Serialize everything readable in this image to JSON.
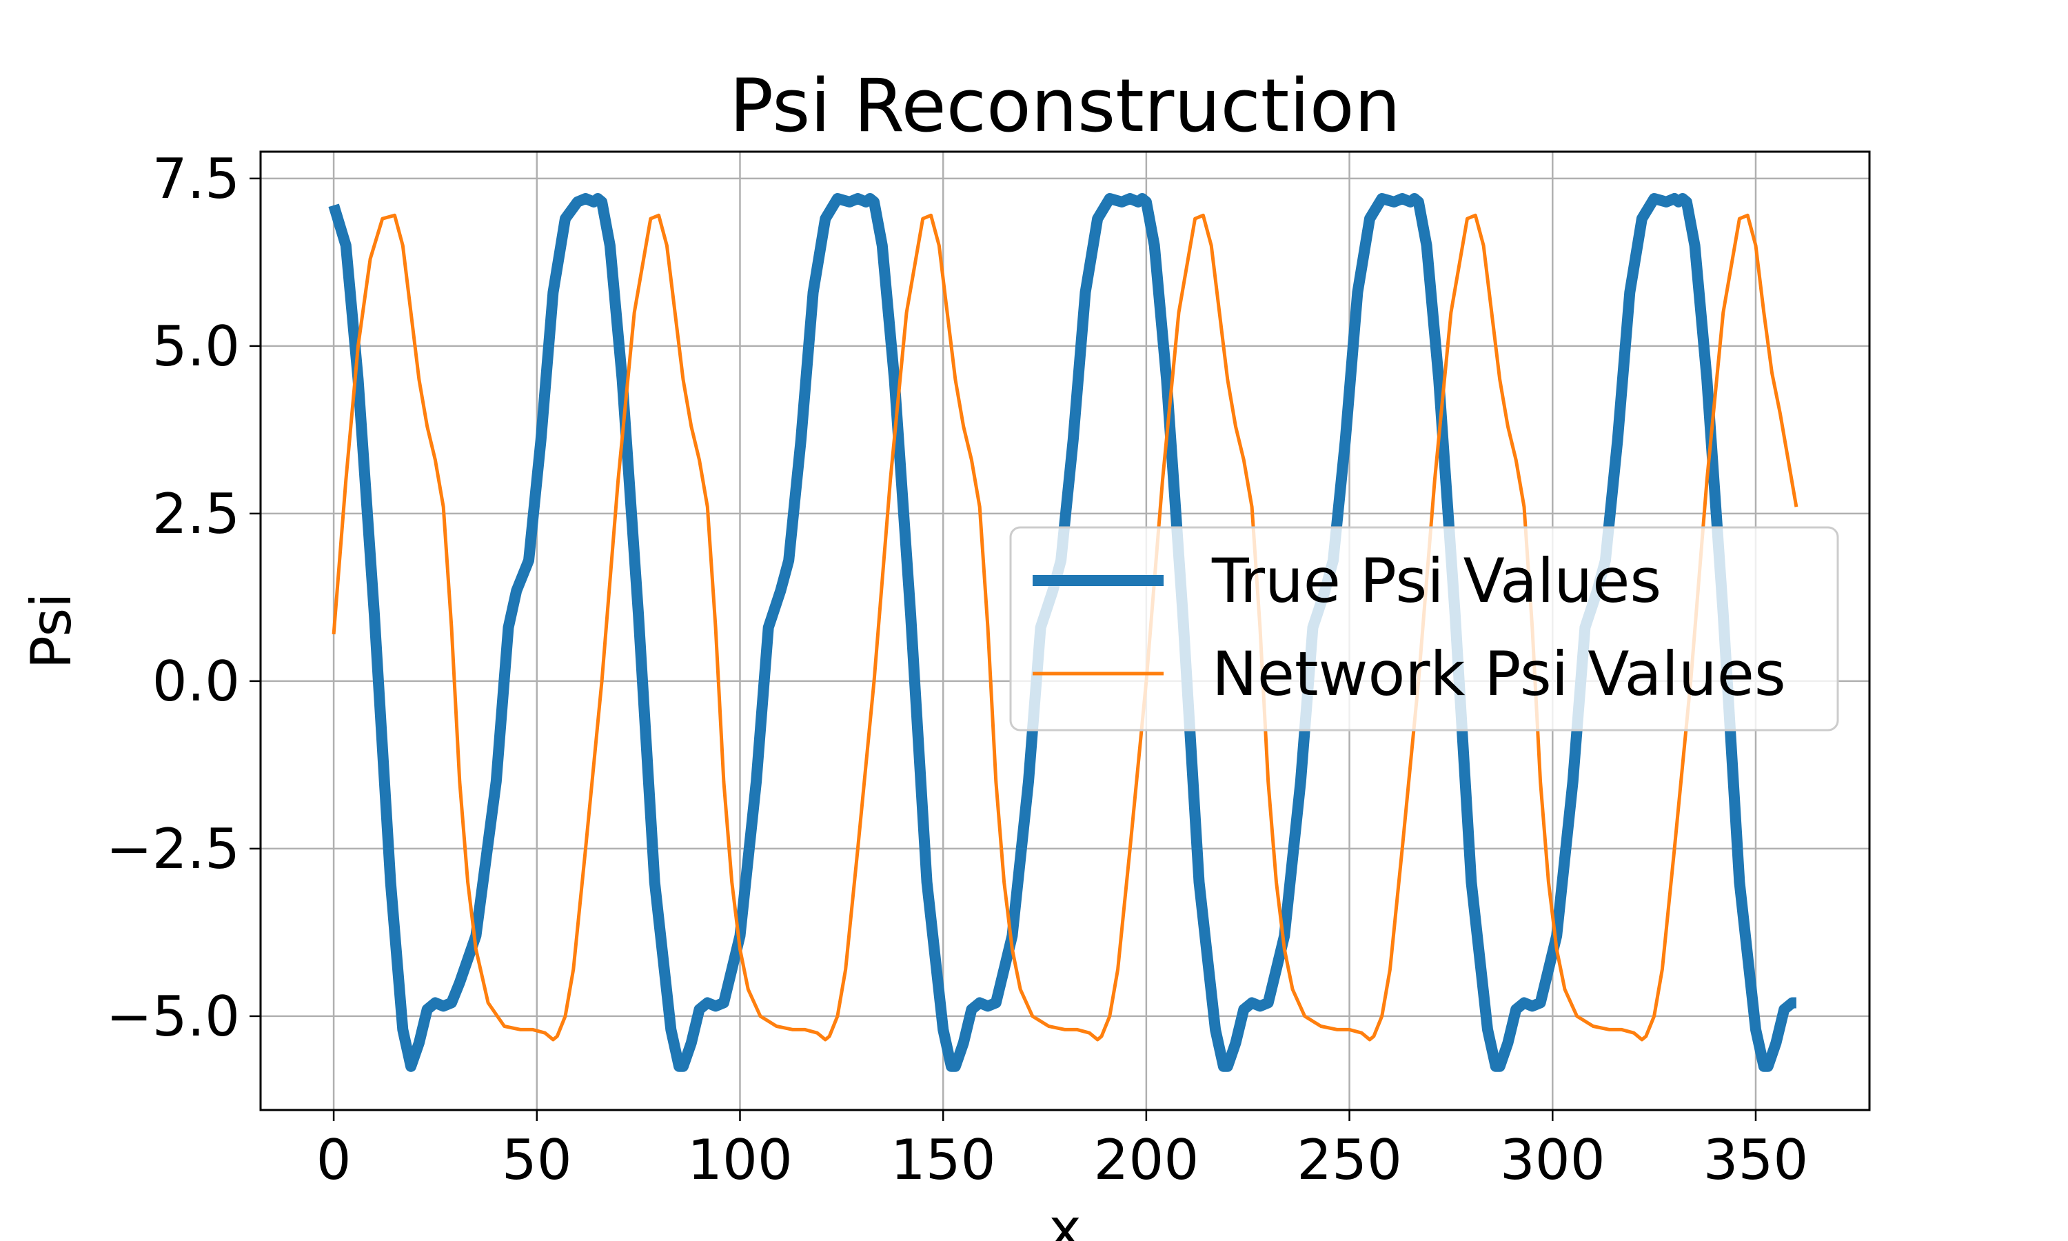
{
  "chart_data": {
    "type": "line",
    "title": "Psi Reconstruction",
    "xlabel": "x",
    "ylabel": "Psi",
    "xlim": [
      -18,
      378
    ],
    "ylim": [
      -6.4,
      7.9
    ],
    "xticks": [
      0,
      50,
      100,
      150,
      200,
      250,
      300,
      350
    ],
    "xtick_labels": [
      "0",
      "50",
      "100",
      "150",
      "200",
      "250",
      "300",
      "350"
    ],
    "yticks": [
      7.5,
      5.0,
      2.5,
      0.0,
      -2.5,
      -5.0
    ],
    "ytick_labels": [
      "7.5",
      "5.0",
      "2.5",
      "0.0",
      "−2.5",
      "−5.0"
    ],
    "grid": true,
    "legend_position": "center-right",
    "series": [
      {
        "name": "True Psi Values",
        "color": "#1f77b4",
        "linewidth": "thick",
        "x": [
          0,
          3,
          6,
          10,
          14,
          17,
          19,
          21,
          23,
          25,
          27,
          29,
          31,
          35,
          40,
          43,
          45,
          48,
          51,
          54,
          57,
          60,
          62,
          64,
          65,
          66,
          68,
          71,
          75,
          79,
          83,
          85,
          86,
          88,
          90,
          92,
          94,
          96,
          100,
          104,
          107,
          110,
          112,
          115,
          118,
          121,
          124,
          127,
          129,
          131,
          132,
          133,
          135,
          138,
          142,
          146,
          150,
          152,
          153,
          155,
          157,
          159,
          161,
          163,
          167,
          171,
          174,
          177,
          179,
          182,
          185,
          188,
          191,
          194,
          196,
          198,
          199,
          200,
          202,
          205,
          209,
          213,
          217,
          219,
          220,
          222,
          224,
          226,
          228,
          230,
          234,
          238,
          241,
          244,
          246,
          249,
          252,
          255,
          258,
          261,
          263,
          265,
          266,
          267,
          269,
          272,
          276,
          280,
          284,
          286,
          287,
          289,
          291,
          293,
          295,
          297,
          301,
          305,
          308,
          311,
          313,
          316,
          319,
          322,
          325,
          328,
          330,
          331,
          332,
          333,
          335,
          338,
          342,
          346,
          350,
          352,
          353,
          355,
          357,
          359,
          360
        ],
        "y": [
          7.1,
          6.5,
          4.5,
          1.0,
          -3.0,
          -5.2,
          -5.75,
          -5.4,
          -4.9,
          -4.8,
          -4.85,
          -4.8,
          -4.5,
          -3.8,
          -1.5,
          0.8,
          1.35,
          1.8,
          3.6,
          5.8,
          6.9,
          7.15,
          7.2,
          7.15,
          7.2,
          7.15,
          6.5,
          4.5,
          1.0,
          -3.0,
          -5.2,
          -5.75,
          -5.75,
          -5.4,
          -4.9,
          -4.8,
          -4.85,
          -4.8,
          -3.8,
          -1.5,
          0.8,
          1.35,
          1.8,
          3.6,
          5.8,
          6.9,
          7.2,
          7.15,
          7.2,
          7.15,
          7.2,
          7.15,
          6.5,
          4.5,
          1.0,
          -3.0,
          -5.2,
          -5.75,
          -5.75,
          -5.4,
          -4.9,
          -4.8,
          -4.85,
          -4.8,
          -3.8,
          -1.5,
          0.8,
          1.35,
          1.8,
          3.6,
          5.8,
          6.9,
          7.2,
          7.15,
          7.2,
          7.15,
          7.2,
          7.15,
          6.5,
          4.5,
          1.0,
          -3.0,
          -5.2,
          -5.75,
          -5.75,
          -5.4,
          -4.9,
          -4.8,
          -4.85,
          -4.8,
          -3.8,
          -1.5,
          0.8,
          1.35,
          1.8,
          3.6,
          5.8,
          6.9,
          7.2,
          7.15,
          7.2,
          7.15,
          7.2,
          7.15,
          6.5,
          4.5,
          1.0,
          -3.0,
          -5.2,
          -5.75,
          -5.75,
          -5.4,
          -4.9,
          -4.8,
          -4.85,
          -4.8,
          -3.8,
          -1.5,
          0.8,
          1.35,
          1.8,
          3.6,
          5.8,
          6.9,
          7.2,
          7.15,
          7.2,
          7.15,
          7.2,
          7.15,
          6.5,
          4.5,
          1.0,
          -3.0,
          -5.2,
          -5.75,
          -5.75,
          -5.4,
          -4.9,
          -4.8,
          -4.8
        ]
      },
      {
        "name": "Network Psi Values",
        "color": "#ff7f0e",
        "linewidth": "thin",
        "x": [
          0,
          3,
          6,
          9,
          12,
          15,
          17,
          19,
          21,
          23,
          25,
          27,
          29,
          31,
          33,
          35,
          38,
          42,
          46,
          49,
          52,
          54,
          55,
          57,
          59,
          62,
          66,
          70,
          74,
          78,
          80,
          82,
          84,
          86,
          88,
          90,
          92,
          94,
          96,
          98,
          100,
          102,
          105,
          109,
          113,
          116,
          119,
          121,
          122,
          124,
          126,
          129,
          133,
          137,
          141,
          145,
          147,
          149,
          151,
          153,
          155,
          157,
          159,
          161,
          163,
          165,
          167,
          169,
          172,
          176,
          180,
          183,
          186,
          188,
          189,
          191,
          193,
          196,
          200,
          204,
          208,
          212,
          214,
          216,
          218,
          220,
          222,
          224,
          226,
          228,
          230,
          232,
          234,
          236,
          239,
          243,
          247,
          250,
          253,
          255,
          256,
          258,
          260,
          263,
          267,
          271,
          275,
          279,
          281,
          283,
          285,
          287,
          289,
          291,
          293,
          295,
          297,
          299,
          301,
          303,
          306,
          310,
          314,
          317,
          320,
          322,
          323,
          325,
          327,
          330,
          334,
          338,
          342,
          346,
          348,
          350,
          352,
          354,
          356,
          358,
          360
        ],
        "y": [
          0.7,
          3.0,
          5.0,
          6.3,
          6.9,
          6.95,
          6.5,
          5.5,
          4.5,
          3.8,
          3.3,
          2.6,
          0.8,
          -1.5,
          -3.0,
          -4.0,
          -4.8,
          -5.15,
          -5.2,
          -5.2,
          -5.25,
          -5.35,
          -5.3,
          -5.0,
          -4.3,
          -2.5,
          0.0,
          3.0,
          5.5,
          6.9,
          6.95,
          6.5,
          5.5,
          4.5,
          3.8,
          3.3,
          2.6,
          0.8,
          -1.5,
          -3.0,
          -4.0,
          -4.6,
          -5.0,
          -5.15,
          -5.2,
          -5.2,
          -5.25,
          -5.35,
          -5.3,
          -5.0,
          -4.3,
          -2.5,
          0.0,
          3.0,
          5.5,
          6.9,
          6.95,
          6.5,
          5.5,
          4.5,
          3.8,
          3.3,
          2.6,
          0.8,
          -1.5,
          -3.0,
          -4.0,
          -4.6,
          -5.0,
          -5.15,
          -5.2,
          -5.2,
          -5.25,
          -5.35,
          -5.3,
          -5.0,
          -4.3,
          -2.5,
          0.0,
          3.0,
          5.5,
          6.9,
          6.95,
          6.5,
          5.5,
          4.5,
          3.8,
          3.3,
          2.6,
          0.8,
          -1.5,
          -3.0,
          -4.0,
          -4.6,
          -5.0,
          -5.15,
          -5.2,
          -5.2,
          -5.25,
          -5.35,
          -5.3,
          -5.0,
          -4.3,
          -2.5,
          0.0,
          3.0,
          5.5,
          6.9,
          6.95,
          6.5,
          5.5,
          4.5,
          3.8,
          3.3,
          2.6,
          0.8,
          -1.5,
          -3.0,
          -4.0,
          -4.6,
          -5.0,
          -5.15,
          -5.2,
          -5.2,
          -5.25,
          -5.35,
          -5.3,
          -5.0,
          -4.3,
          -2.5,
          0.0,
          3.0,
          5.5,
          6.9,
          6.95,
          6.5,
          5.5,
          4.6,
          4.0,
          3.3,
          2.6
        ]
      }
    ]
  }
}
